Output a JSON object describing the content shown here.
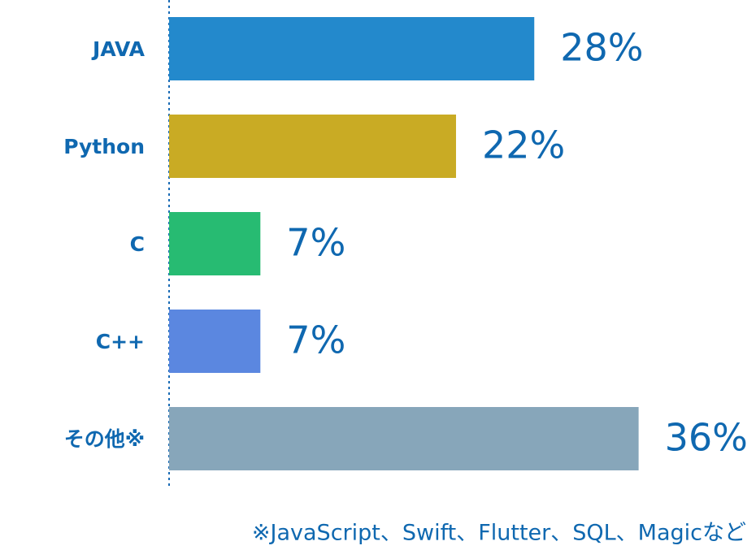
{
  "chart_data": {
    "type": "hbar",
    "categories": [
      "JAVA",
      "Python",
      "C",
      "C++",
      "その他※"
    ],
    "values": [
      28,
      22,
      7,
      7,
      36
    ],
    "value_labels": [
      "28%",
      "22%",
      "7%",
      "7%",
      "36%"
    ],
    "colors": [
      "#2389cc",
      "#c9ab24",
      "#27bb72",
      "#5b87e0",
      "#87a6ba"
    ],
    "xlim": [
      0,
      45
    ],
    "note": "※JavaScript、Swift、Flutter、SQL、Magicなど"
  }
}
